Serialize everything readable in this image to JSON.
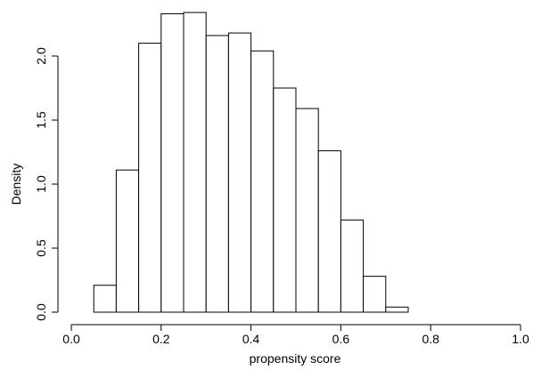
{
  "chart_data": {
    "type": "bar",
    "title": "",
    "xlabel": "propensity score",
    "ylabel": "Density",
    "xlim": [
      0.0,
      1.0
    ],
    "ylim": [
      0.0,
      2.35
    ],
    "xticks": [
      0.0,
      0.2,
      0.4,
      0.6,
      0.8,
      1.0
    ],
    "xtick_labels": [
      "0.0",
      "0.2",
      "0.4",
      "0.6",
      "0.8",
      "1.0"
    ],
    "yticks": [
      0.0,
      0.5,
      1.0,
      1.5,
      2.0
    ],
    "ytick_labels": [
      "0.0",
      "0.5",
      "1.0",
      "1.5",
      "2.0"
    ],
    "bin_width": 0.05,
    "bins": [
      {
        "start": 0.05,
        "end": 0.1,
        "value": 0.21
      },
      {
        "start": 0.1,
        "end": 0.15,
        "value": 1.11
      },
      {
        "start": 0.15,
        "end": 0.2,
        "value": 2.1
      },
      {
        "start": 0.2,
        "end": 0.25,
        "value": 2.33
      },
      {
        "start": 0.25,
        "end": 0.3,
        "value": 2.34
      },
      {
        "start": 0.3,
        "end": 0.35,
        "value": 2.16
      },
      {
        "start": 0.35,
        "end": 0.4,
        "value": 2.18
      },
      {
        "start": 0.4,
        "end": 0.45,
        "value": 2.04
      },
      {
        "start": 0.45,
        "end": 0.5,
        "value": 1.75
      },
      {
        "start": 0.5,
        "end": 0.55,
        "value": 1.59
      },
      {
        "start": 0.55,
        "end": 0.6,
        "value": 1.26
      },
      {
        "start": 0.6,
        "end": 0.65,
        "value": 0.72
      },
      {
        "start": 0.65,
        "end": 0.7,
        "value": 0.28
      },
      {
        "start": 0.7,
        "end": 0.75,
        "value": 0.04
      }
    ]
  }
}
